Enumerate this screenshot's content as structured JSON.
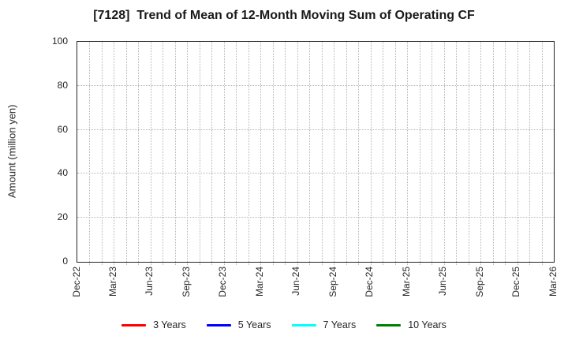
{
  "chart_data": {
    "type": "line",
    "title": "[7128]  Trend of Mean of 12-Month Moving Sum of Operating CF",
    "xlabel": "",
    "ylabel": "Amount (million yen)",
    "ylim": [
      0,
      100
    ],
    "yticks": [
      0,
      20,
      40,
      60,
      80,
      100
    ],
    "categories": [
      "Dec-22",
      "Mar-23",
      "Jun-23",
      "Sep-23",
      "Dec-23",
      "Mar-24",
      "Jun-24",
      "Sep-24",
      "Dec-24",
      "Mar-25",
      "Jun-25",
      "Sep-25",
      "Dec-25",
      "Mar-26"
    ],
    "months_between_labels": 3,
    "grid": "dotted; vertical gridline every month, horizontal every 20 units",
    "legend_position": "bottom-center",
    "series": [
      {
        "name": "3 Years",
        "color": "#ff0000",
        "values": []
      },
      {
        "name": "5 Years",
        "color": "#0000ff",
        "values": []
      },
      {
        "name": "7 Years",
        "color": "#00ffff",
        "values": []
      },
      {
        "name": "10 Years",
        "color": "#008000",
        "values": []
      }
    ]
  }
}
